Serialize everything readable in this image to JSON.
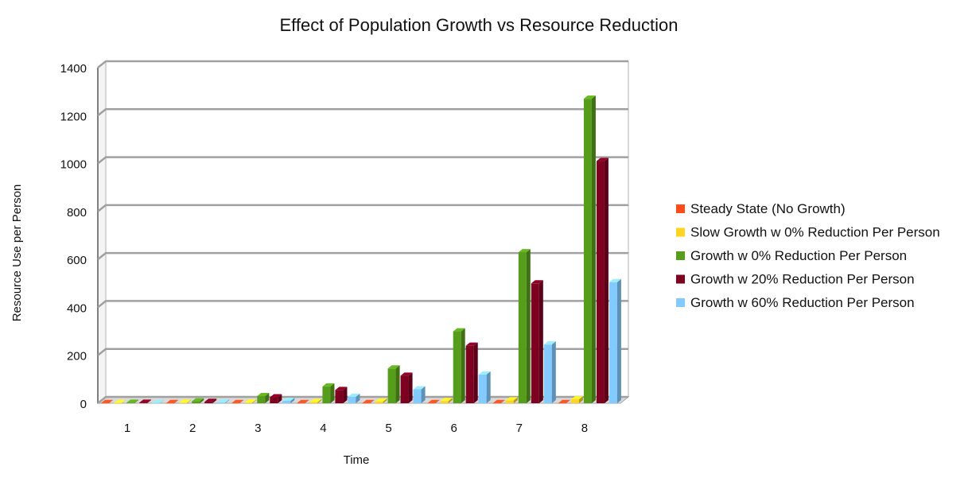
{
  "chart_data": {
    "type": "bar",
    "title": "Effect of Population Growth vs Resource Reduction",
    "xlabel": "Time",
    "ylabel": "Resource Use per Person",
    "categories": [
      "1",
      "2",
      "3",
      "4",
      "5",
      "6",
      "7",
      "8"
    ],
    "ylim": [
      0,
      1400
    ],
    "yticks": [
      "0",
      "200",
      "400",
      "600",
      "800",
      "1000",
      "1200",
      "1400"
    ],
    "grid": true,
    "legend_position": "right",
    "series": [
      {
        "name": "Steady State (No Growth)",
        "color": "#ff4a1c",
        "values": [
          1,
          1,
          1,
          1,
          1,
          1,
          1,
          1
        ]
      },
      {
        "name": "Slow Growth w 0% Reduction Per Person",
        "color": "#ffd320",
        "values": [
          1,
          2,
          3,
          5,
          7,
          9,
          12,
          16
        ]
      },
      {
        "name": "Growth w 0% Reduction Per Person",
        "color": "#579d1c",
        "values": [
          2,
          8,
          30,
          70,
          145,
          300,
          630,
          1270
        ]
      },
      {
        "name": "Growth w 20% Reduction Per Person",
        "color": "#7e0021",
        "values": [
          2,
          6,
          25,
          55,
          115,
          240,
          500,
          1010
        ]
      },
      {
        "name": "Growth w 60% Reduction Per Person",
        "color": "#83caff",
        "values": [
          1,
          3,
          10,
          27,
          58,
          120,
          245,
          505
        ]
      }
    ]
  }
}
